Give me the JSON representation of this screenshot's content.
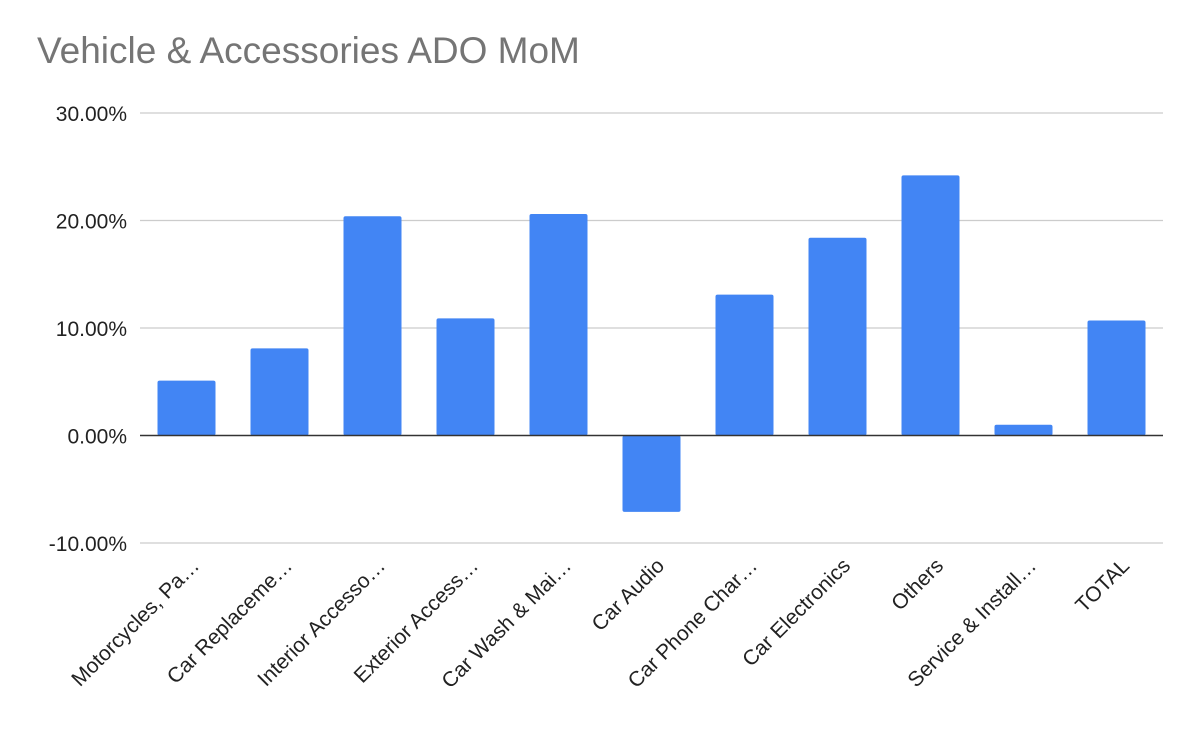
{
  "chart_data": {
    "type": "bar",
    "title": "Vehicle & Accessories ADO MoM",
    "xlabel": "",
    "ylabel": "",
    "categories": [
      "Motorcycles, Pa…",
      "Car Replaceme…",
      "Interior Accesso…",
      "Exterior Access…",
      "Car Wash & Mai…",
      "Car Audio",
      "Car Phone Char…",
      "Car Electronics",
      "Others",
      "Service & Install…",
      "TOTAL"
    ],
    "values": [
      5.1,
      8.1,
      20.4,
      10.9,
      20.6,
      -7.1,
      13.1,
      18.4,
      24.2,
      1.0,
      10.7
    ],
    "ylim": [
      -10,
      30
    ],
    "yticks": [
      30,
      20,
      10,
      0,
      -10
    ],
    "ytick_labels": [
      "30.00%",
      "20.00%",
      "10.00%",
      "0.00%",
      "-10.00%"
    ],
    "grid": true,
    "bar_color": "#4285f4"
  }
}
